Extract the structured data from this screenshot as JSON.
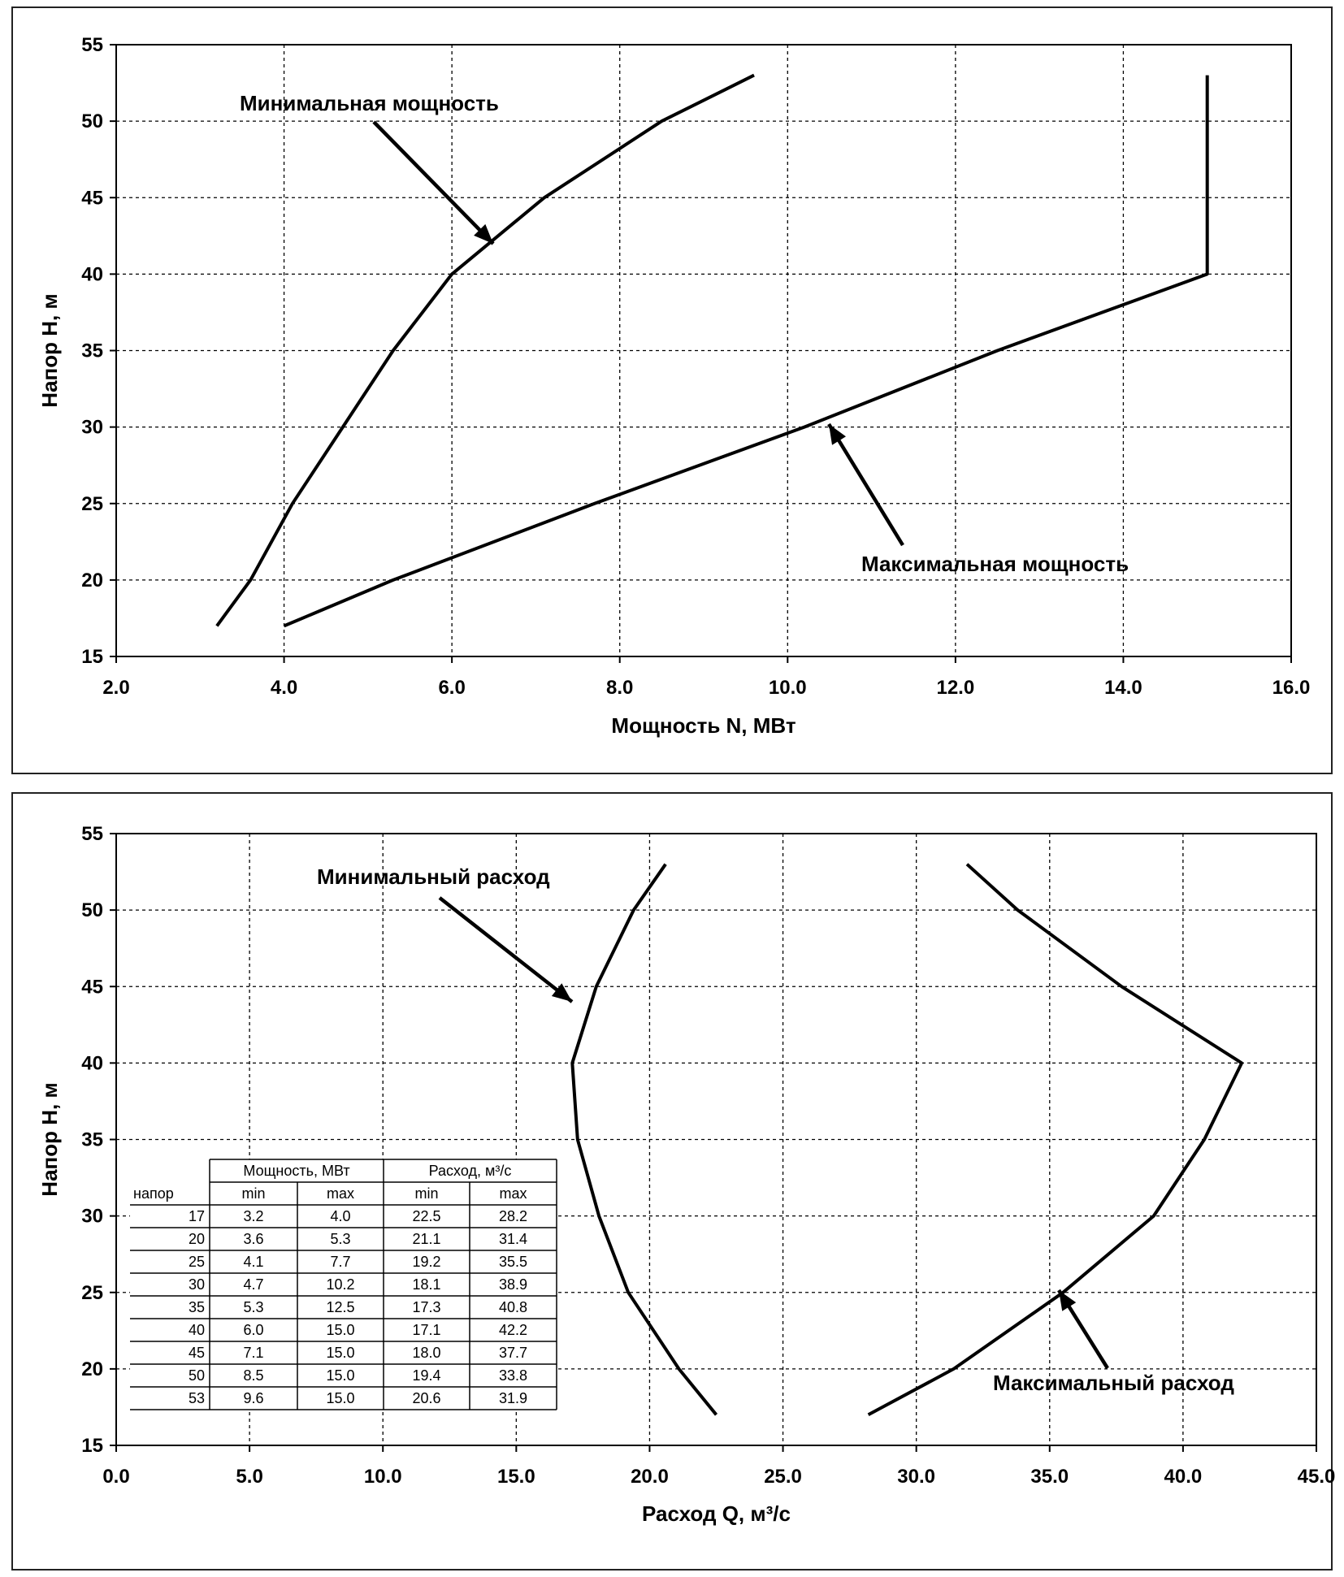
{
  "chart_data": [
    {
      "type": "line",
      "xlabel": "Мощность N, МВт",
      "ylabel": "Напор Н, м",
      "xlim": [
        2.0,
        16.0
      ],
      "ylim": [
        15,
        55
      ],
      "xticks": [
        "2.0",
        "4.0",
        "6.0",
        "8.0",
        "10.0",
        "12.0",
        "14.0",
        "16.0"
      ],
      "yticks": [
        "15",
        "20",
        "25",
        "30",
        "35",
        "40",
        "45",
        "50",
        "55"
      ],
      "grid": true,
      "series": [
        {
          "name": "Минимальная мощность",
          "x": [
            3.2,
            3.6,
            4.1,
            4.7,
            5.3,
            6.0,
            7.1,
            8.5,
            9.6
          ],
          "y": [
            17,
            20,
            25,
            30,
            35,
            40,
            45,
            50,
            53
          ]
        },
        {
          "name": "Максимальная мощность",
          "x": [
            4.0,
            5.3,
            7.7,
            10.2,
            12.5,
            15.0,
            15.0,
            15.0,
            15.0
          ],
          "y": [
            17,
            20,
            25,
            30,
            35,
            40,
            45,
            50,
            53
          ]
        }
      ],
      "annotations": [
        {
          "text": "Минимальная мощность",
          "points_to": "Минимальная мощность"
        },
        {
          "text": "Максимальная мощность",
          "points_to": "Максимальная мощность"
        }
      ]
    },
    {
      "type": "line",
      "xlabel": "Расход Q, м³/с",
      "ylabel": "Напор Н, м",
      "xlim": [
        0.0,
        45.0
      ],
      "ylim": [
        15,
        55
      ],
      "xticks": [
        "0.0",
        "5.0",
        "10.0",
        "15.0",
        "20.0",
        "25.0",
        "30.0",
        "35.0",
        "40.0",
        "45.0"
      ],
      "yticks": [
        "15",
        "20",
        "25",
        "30",
        "35",
        "40",
        "45",
        "50",
        "55"
      ],
      "grid": true,
      "series": [
        {
          "name": "Минимальный расход",
          "x": [
            22.5,
            21.1,
            19.2,
            18.1,
            17.3,
            17.1,
            18.0,
            19.4,
            20.6
          ],
          "y": [
            17,
            20,
            25,
            30,
            35,
            40,
            45,
            50,
            53
          ]
        },
        {
          "name": "Максимальный расход",
          "x": [
            28.2,
            31.4,
            35.5,
            38.9,
            40.8,
            42.2,
            37.7,
            33.8,
            31.9
          ],
          "y": [
            17,
            20,
            25,
            30,
            35,
            40,
            45,
            50,
            53
          ]
        }
      ],
      "annotations": [
        {
          "text": "Минимальный расход",
          "points_to": "Минимальный расход"
        },
        {
          "text": "Максимальный расход",
          "points_to": "Максимальный расход"
        }
      ],
      "table": {
        "group_headers": [
          "Мощность, МВт",
          "Расход, м³/с"
        ],
        "sub_headers": [
          "напор",
          "min",
          "max",
          "min",
          "max"
        ],
        "rows": [
          [
            "17",
            "3.2",
            "4.0",
            "22.5",
            "28.2"
          ],
          [
            "20",
            "3.6",
            "5.3",
            "21.1",
            "31.4"
          ],
          [
            "25",
            "4.1",
            "7.7",
            "19.2",
            "35.5"
          ],
          [
            "30",
            "4.7",
            "10.2",
            "18.1",
            "38.9"
          ],
          [
            "35",
            "5.3",
            "12.5",
            "17.3",
            "40.8"
          ],
          [
            "40",
            "6.0",
            "15.0",
            "17.1",
            "42.2"
          ],
          [
            "45",
            "7.1",
            "15.0",
            "18.0",
            "37.7"
          ],
          [
            "50",
            "8.5",
            "15.0",
            "19.4",
            "33.8"
          ],
          [
            "53",
            "9.6",
            "15.0",
            "20.6",
            "31.9"
          ]
        ]
      }
    }
  ]
}
